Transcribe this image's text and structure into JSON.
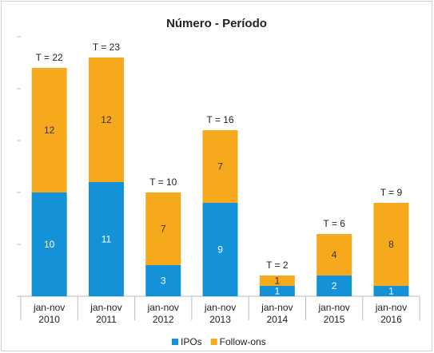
{
  "chart_data": {
    "type": "stacked_bar",
    "title": "Número - Período",
    "categories": [
      "jan-nov 2010",
      "jan-nov 2011",
      "jan-nov 2012",
      "jan-nov 2013",
      "jan-nov 2014",
      "jan-nov 2015",
      "jan-nov 2016"
    ],
    "series": [
      {
        "name": "IPOs",
        "color": "#1492d8",
        "values": [
          10,
          11,
          3,
          9,
          1,
          2,
          1
        ]
      },
      {
        "name": "Follow-ons",
        "color": "#f6a91d",
        "values": [
          12,
          12,
          7,
          7,
          1,
          4,
          8
        ]
      }
    ],
    "total_labels": [
      "T = 22",
      "T = 23",
      "T = 10",
      "T = 16",
      "T = 2",
      "T = 6",
      "T = 9"
    ],
    "ylim": [
      0,
      25
    ],
    "yticks": [
      0,
      5,
      10,
      15,
      20,
      25
    ],
    "legend": "bottom"
  }
}
